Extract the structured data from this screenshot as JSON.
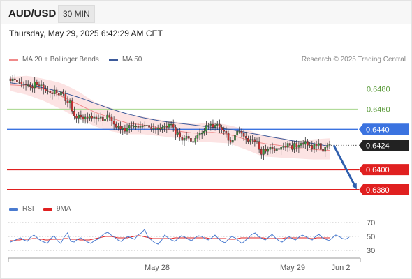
{
  "header": {
    "symbol": "AUD/USD",
    "interval": "30 MIN",
    "datetime": "Thursday, May 29, 2025 6:42:29 AM CET"
  },
  "legend": {
    "items": [
      {
        "label": "MA 20 + Bollinger Bands",
        "color": "#f08a8a"
      },
      {
        "label": "MA 50",
        "color": "#3c5a9a"
      }
    ],
    "copyright": "Research © 2025 Trading Central"
  },
  "rsi_legend": {
    "items": [
      {
        "label": "RSI",
        "color": "#4a7bd0"
      },
      {
        "label": "9MA",
        "color": "#e02020"
      }
    ]
  },
  "chart_data": [
    {
      "type": "line",
      "title": "",
      "ylim": [
        0.6371,
        0.6499
      ],
      "x_ticks": [
        "May 28",
        "May 29",
        "Jun 2"
      ],
      "levels": [
        {
          "label": "0.6480",
          "value": 0.648,
          "style": "thin",
          "color": "#a6d68c",
          "text_color": "#5a9a3a"
        },
        {
          "label": "0.6460",
          "value": 0.646,
          "style": "thin",
          "color": "#a6d68c",
          "text_color": "#5a9a3a"
        },
        {
          "label": "0.6440",
          "value": 0.644,
          "style": "medium",
          "color": "#3b73e0",
          "text_color": "#ffffff",
          "bg": "#3b73e0"
        },
        {
          "label": "0.6424",
          "value": 0.6424,
          "style": "dotted",
          "color": "#555555",
          "text_color": "#ffffff",
          "bg": "#222222"
        },
        {
          "label": "0.6400",
          "value": 0.64,
          "style": "thick",
          "color": "#e02020",
          "text_color": "#ffffff",
          "bg": "#e02020"
        },
        {
          "label": "0.6380",
          "value": 0.638,
          "style": "thick",
          "color": "#e02020",
          "text_color": "#ffffff",
          "bg": "#e02020"
        }
      ],
      "forecast_arrow": {
        "from": 0.6424,
        "to": 0.638,
        "color": "#2f5fae"
      },
      "ma50": [
        0.6486,
        0.6484,
        0.6481,
        0.6477,
        0.6472,
        0.6466,
        0.646,
        0.6455,
        0.6451,
        0.6448,
        0.6446,
        0.6444,
        0.6442,
        0.644,
        0.6437,
        0.6434,
        0.6431,
        0.6428,
        0.6426,
        0.6423
      ],
      "ma20": [
        0.6484,
        0.6483,
        0.648,
        0.6473,
        0.6465,
        0.6457,
        0.6451,
        0.6446,
        0.6444,
        0.6441,
        0.6438,
        0.6436,
        0.6437,
        0.6435,
        0.643,
        0.6426,
        0.6424,
        0.6421,
        0.642,
        0.6419
      ],
      "bb_upper": [
        0.6492,
        0.6493,
        0.649,
        0.6486,
        0.6478,
        0.6467,
        0.6461,
        0.6455,
        0.6452,
        0.6449,
        0.6447,
        0.6445,
        0.6447,
        0.6444,
        0.644,
        0.6434,
        0.6432,
        0.6428,
        0.643,
        0.6431
      ],
      "bb_lower": [
        0.6478,
        0.6474,
        0.6468,
        0.646,
        0.6451,
        0.6443,
        0.6438,
        0.6435,
        0.6435,
        0.6433,
        0.6431,
        0.6428,
        0.6427,
        0.6426,
        0.642,
        0.6413,
        0.6412,
        0.6411,
        0.641,
        0.641
      ],
      "closes": [
        0.6488,
        0.649,
        0.6489,
        0.6487,
        0.6487,
        0.6485,
        0.6485,
        0.6484,
        0.6484,
        0.6482,
        0.6481,
        0.6487,
        0.6484,
        0.6483,
        0.6484,
        0.648,
        0.6478,
        0.6478,
        0.6476,
        0.6475,
        0.6479,
        0.6476,
        0.6474,
        0.6477,
        0.6475,
        0.6468,
        0.6466,
        0.6468,
        0.6458,
        0.6453,
        0.6451,
        0.6454,
        0.6452,
        0.645,
        0.6452,
        0.6451,
        0.6453,
        0.6451,
        0.6452,
        0.645,
        0.6451,
        0.6452,
        0.6448,
        0.645,
        0.6454,
        0.6452,
        0.6448,
        0.6445,
        0.6442,
        0.6443,
        0.644,
        0.6441,
        0.6438,
        0.6441,
        0.6444,
        0.6443,
        0.6443,
        0.6443,
        0.6442,
        0.6443,
        0.6443,
        0.6444,
        0.6444,
        0.6442,
        0.644,
        0.6441,
        0.644,
        0.6441,
        0.644,
        0.6442,
        0.6443,
        0.6442,
        0.6445,
        0.6445,
        0.6442,
        0.6435,
        0.6437,
        0.6432,
        0.6429,
        0.6431,
        0.6433,
        0.6431,
        0.6428,
        0.6427,
        0.6431,
        0.6434,
        0.6436,
        0.6436,
        0.6438,
        0.6444,
        0.6444,
        0.6445,
        0.6442,
        0.6444,
        0.6445,
        0.6442,
        0.6439,
        0.6438,
        0.6436,
        0.6429,
        0.6427,
        0.6429,
        0.6434,
        0.6438,
        0.6438,
        0.6436,
        0.6433,
        0.6431,
        0.6428,
        0.643,
        0.643,
        0.6428,
        0.6428,
        0.642,
        0.6415,
        0.642,
        0.6418,
        0.642,
        0.6422,
        0.6421,
        0.6419,
        0.6421,
        0.642,
        0.6422,
        0.6423,
        0.6422,
        0.6426,
        0.6424,
        0.642,
        0.6426,
        0.6422,
        0.6424,
        0.6426,
        0.6425,
        0.6428,
        0.6424,
        0.6424,
        0.6421,
        0.6425,
        0.6423,
        0.6426,
        0.642,
        0.6418,
        0.6422,
        0.6424,
        0.6425
      ]
    },
    {
      "type": "line",
      "title": "",
      "ylim": [
        20,
        80
      ],
      "y_ticks": [
        70,
        50,
        30
      ],
      "rsi": [
        42,
        44,
        46,
        48,
        45,
        43,
        49,
        52,
        48,
        44,
        42,
        40,
        47,
        51,
        44,
        40,
        49,
        55,
        43,
        42,
        46,
        48,
        45,
        42,
        40,
        44,
        46,
        50,
        54,
        56,
        52,
        49,
        45,
        43,
        47,
        50,
        48,
        46,
        52,
        55,
        60,
        49,
        45,
        41,
        39,
        44,
        52,
        48,
        45,
        43,
        47,
        51,
        49,
        46,
        44,
        48,
        51,
        50,
        47,
        45,
        48,
        52,
        47,
        43,
        41,
        46,
        50,
        48,
        44,
        40,
        44,
        48,
        53,
        55,
        50,
        47,
        45,
        49,
        53,
        48,
        44,
        42,
        46,
        50,
        47,
        45,
        49,
        52,
        50,
        47,
        45,
        50,
        53,
        48,
        46,
        44,
        48,
        52,
        50,
        47,
        46,
        49
      ],
      "ma9": [
        44,
        44,
        45,
        45,
        46,
        46,
        46,
        47,
        47,
        46,
        46,
        45,
        45,
        46,
        46,
        46,
        46,
        47,
        47,
        46,
        46,
        46,
        45,
        45,
        45,
        45,
        46,
        47,
        48,
        49,
        50,
        50,
        50,
        49,
        48,
        48,
        48,
        48,
        49,
        50,
        51,
        51,
        50,
        49,
        48,
        47,
        47,
        47,
        47,
        47,
        47,
        47,
        48,
        48,
        48,
        48,
        48,
        48,
        48,
        48,
        48,
        48,
        48,
        47,
        47,
        47,
        47,
        47,
        47,
        46,
        46,
        46,
        47,
        48,
        48,
        48,
        48,
        48,
        48,
        48,
        48,
        47,
        47,
        47,
        47,
        47,
        47,
        48,
        48,
        48,
        48,
        48,
        48,
        48,
        48,
        47,
        47,
        48,
        48,
        48,
        48,
        48
      ]
    }
  ]
}
